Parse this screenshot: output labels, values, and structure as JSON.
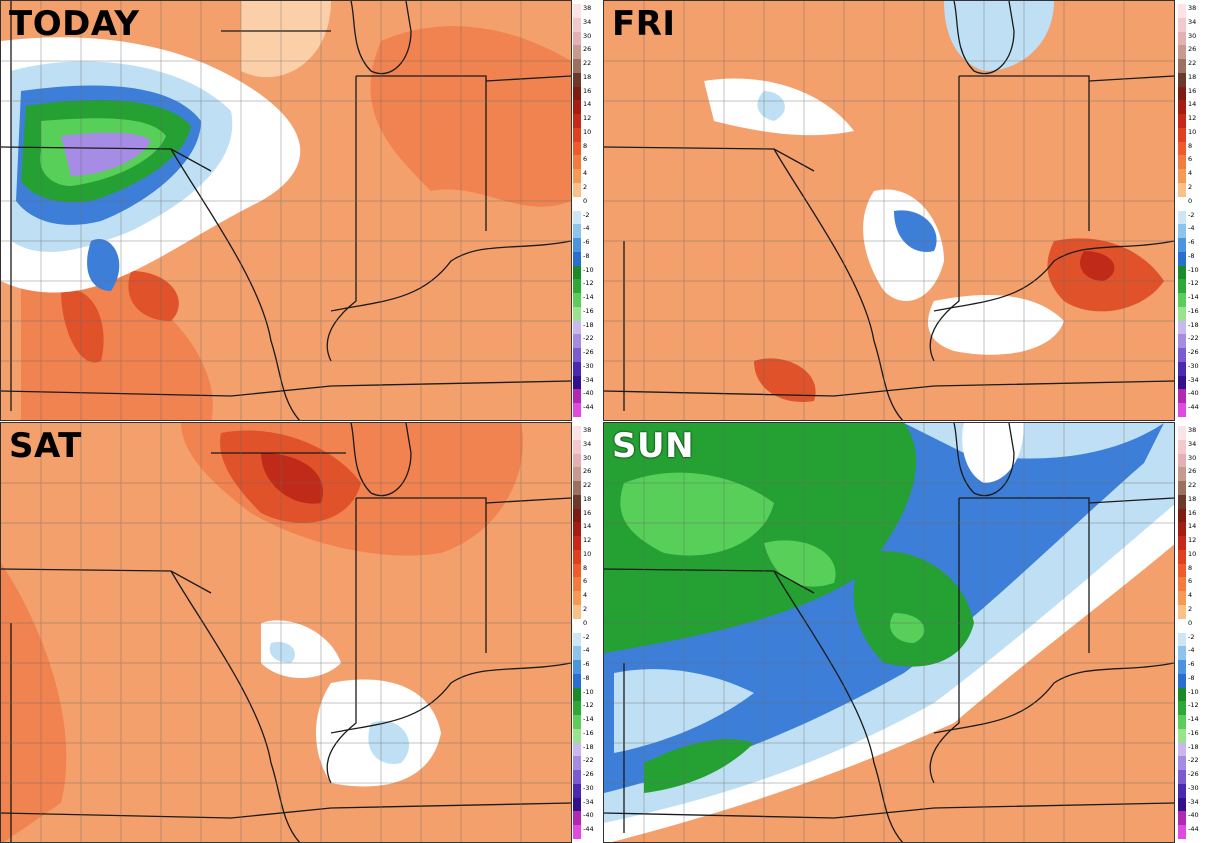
{
  "panels": [
    {
      "label": "TODAY",
      "theme": "warm-with-cold-northwest"
    },
    {
      "label": "FRI",
      "theme": "warm"
    },
    {
      "label": "SAT",
      "theme": "hot-north"
    },
    {
      "label": "SUN",
      "theme": "cold-front"
    }
  ],
  "colorbar": {
    "ticks": [
      "38",
      "34",
      "30",
      "26",
      "22",
      "18",
      "16",
      "14",
      "12",
      "10",
      "8",
      "6",
      "4",
      "2",
      "0",
      "-2",
      "-4",
      "-6",
      "-8",
      "-10",
      "-12",
      "-14",
      "-16",
      "-18",
      "-22",
      "-26",
      "-30",
      "-34",
      "-40",
      "-44"
    ],
    "colors": [
      "#fbe3e8",
      "#f3c9ce",
      "#e4b0b4",
      "#c79a90",
      "#9b7161",
      "#6b3a2a",
      "#7c1c12",
      "#a51c12",
      "#c8281a",
      "#e0401f",
      "#ef5b2b",
      "#f47b3e",
      "#f59a55",
      "#f9c188",
      "#ffffff",
      "#cde6f6",
      "#8ec4ec",
      "#4b94de",
      "#2a6ed0",
      "#1d8a2a",
      "#2ea83a",
      "#5ccc5a",
      "#9be290",
      "#c9b8ee",
      "#a48ce0",
      "#7a5bd0",
      "#4a2ab0",
      "#32118a",
      "#b02ab0",
      "#e04ae0"
    ]
  },
  "palette": {
    "warm_base": "#f4a06c",
    "warm_mid": "#f08350",
    "warm_hot": "#e0522a",
    "hot_core": "#c02a18",
    "mild": "#fbd0a8",
    "neutral": "#ffffff",
    "light_blue": "#bfe0f4",
    "blue": "#3d7fd8",
    "dark_blue": "#2359c8",
    "green": "#25a033",
    "light_green": "#57cf58",
    "purple": "#a78ce6"
  }
}
